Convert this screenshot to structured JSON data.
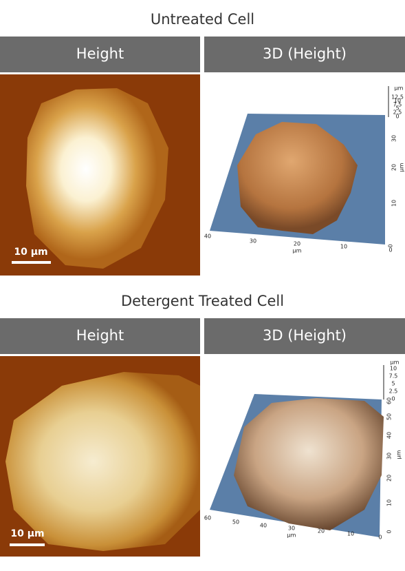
{
  "panels": [
    {
      "title": "Untreated Cell",
      "headers": [
        "Height",
        "3D (Height)"
      ],
      "scale_bar": "10 µm",
      "z_axis": {
        "unit": "µm",
        "ticks": [
          "12.5",
          "10",
          "7.5",
          "5",
          "2.5",
          "0"
        ]
      },
      "y_axis": {
        "unit": "µm",
        "ticks": [
          "30",
          "20",
          "10",
          "0"
        ]
      },
      "x_axis": {
        "unit": "µm",
        "ticks": [
          "40",
          "30",
          "20",
          "10",
          "0"
        ]
      }
    },
    {
      "title": "Detergent Treated Cell",
      "headers": [
        "Height",
        "3D (Height)"
      ],
      "scale_bar": "10 µm",
      "z_axis": {
        "unit": "µm",
        "ticks": [
          "10",
          "7.5",
          "5",
          "2.5",
          "0"
        ]
      },
      "y_axis": {
        "unit": "µm",
        "ticks": [
          "60",
          "50",
          "40",
          "30",
          "20",
          "10",
          "0"
        ]
      },
      "x_axis": {
        "unit": "µm",
        "ticks": [
          "60",
          "50",
          "40",
          "30",
          "20",
          "10",
          "0"
        ]
      }
    }
  ]
}
